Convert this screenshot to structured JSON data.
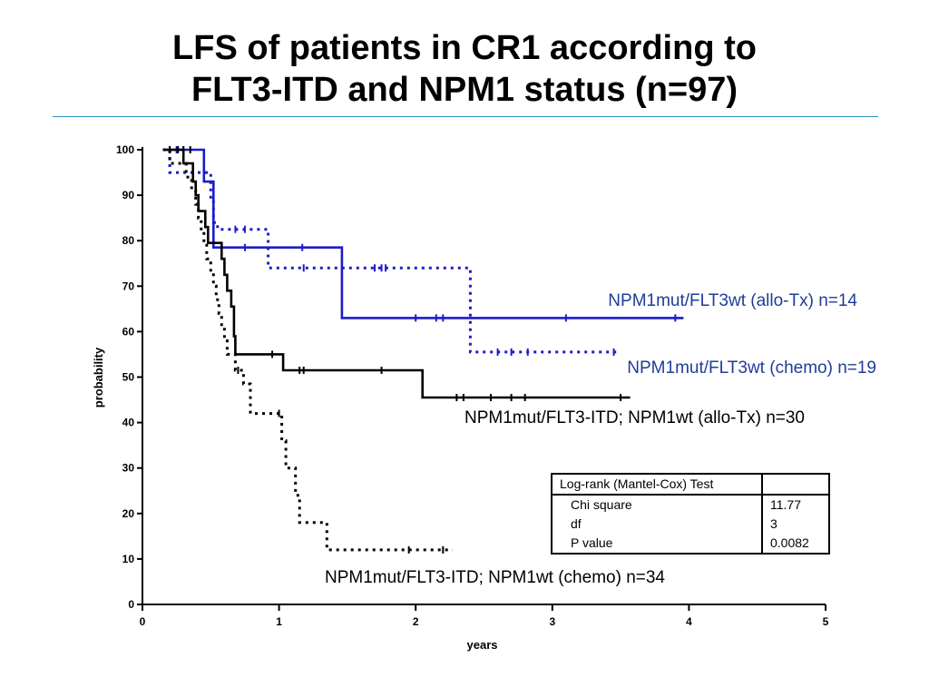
{
  "title": {
    "line1": "LFS of patients in CR1 according to",
    "line2": "FLT3-ITD and NPM1 status (n=97)"
  },
  "colors": {
    "rule": "#2b8fc0",
    "blue": "#1c1cc8",
    "black": "#000000",
    "label_blue": "#1f3d99"
  },
  "chart_data": {
    "type": "line",
    "subtype": "kaplan-meier step",
    "xlabel": "years",
    "ylabel": "probability",
    "xlim": [
      0,
      5
    ],
    "ylim": [
      0,
      100
    ],
    "x_ticks": [
      "0",
      "1",
      "2",
      "3",
      "4",
      "5"
    ],
    "y_ticks": [
      "0",
      "10",
      "20",
      "30",
      "40",
      "50",
      "60",
      "70",
      "80",
      "90",
      "100"
    ],
    "grid": false,
    "series": [
      {
        "name": "NPM1mut/FLT3wt (allo-Tx) n=14",
        "color": "#1c1cc8",
        "style": "solid",
        "points": [
          [
            0.15,
            100
          ],
          [
            0.45,
            100
          ],
          [
            0.45,
            93
          ],
          [
            0.52,
            93
          ],
          [
            0.52,
            78.5
          ],
          [
            1.46,
            78.5
          ],
          [
            1.46,
            63
          ],
          [
            3.96,
            63
          ]
        ],
        "censors": [
          [
            0.75,
            78.5
          ],
          [
            1.17,
            78.5
          ],
          [
            2.0,
            63
          ],
          [
            2.15,
            63
          ],
          [
            2.2,
            63
          ],
          [
            3.1,
            63
          ],
          [
            3.9,
            63
          ]
        ]
      },
      {
        "name": "NPM1mut/FLT3wt (chemo) n=19",
        "color": "#1c1cc8",
        "style": "dotted",
        "points": [
          [
            0.2,
            100
          ],
          [
            0.2,
            95
          ],
          [
            0.5,
            95
          ],
          [
            0.5,
            89
          ],
          [
            0.52,
            89
          ],
          [
            0.52,
            84
          ],
          [
            0.55,
            84
          ],
          [
            0.55,
            82.5
          ],
          [
            0.92,
            82.5
          ],
          [
            0.92,
            74
          ],
          [
            2.4,
            74
          ],
          [
            2.4,
            55.5
          ],
          [
            3.47,
            55.5
          ]
        ],
        "censors": [
          [
            0.2,
            100
          ],
          [
            0.25,
            100
          ],
          [
            0.3,
            100
          ],
          [
            0.68,
            82.5
          ],
          [
            0.75,
            82.5
          ],
          [
            1.18,
            74
          ],
          [
            1.7,
            74
          ],
          [
            1.75,
            74
          ],
          [
            1.78,
            74
          ],
          [
            2.6,
            55.5
          ],
          [
            2.7,
            55.5
          ],
          [
            2.82,
            55.5
          ],
          [
            3.45,
            55.5
          ]
        ]
      },
      {
        "name": "NPM1mut/FLT3-ITD; NPM1wt (allo-Tx) n=30",
        "color": "#000000",
        "style": "solid",
        "points": [
          [
            0.15,
            100
          ],
          [
            0.3,
            100
          ],
          [
            0.3,
            97
          ],
          [
            0.37,
            97
          ],
          [
            0.37,
            93
          ],
          [
            0.39,
            93
          ],
          [
            0.39,
            90
          ],
          [
            0.41,
            90
          ],
          [
            0.41,
            86.5
          ],
          [
            0.46,
            86.5
          ],
          [
            0.46,
            83
          ],
          [
            0.48,
            83
          ],
          [
            0.48,
            79.5
          ],
          [
            0.58,
            79.5
          ],
          [
            0.58,
            76
          ],
          [
            0.6,
            76
          ],
          [
            0.6,
            72.5
          ],
          [
            0.62,
            72.5
          ],
          [
            0.62,
            69
          ],
          [
            0.65,
            69
          ],
          [
            0.65,
            65.5
          ],
          [
            0.67,
            65.5
          ],
          [
            0.67,
            59
          ],
          [
            0.68,
            59
          ],
          [
            0.68,
            55
          ],
          [
            1.03,
            55
          ],
          [
            1.03,
            51.5
          ],
          [
            2.05,
            51.5
          ],
          [
            2.05,
            45.5
          ],
          [
            3.57,
            45.5
          ]
        ],
        "censors": [
          [
            0.2,
            100
          ],
          [
            0.26,
            100
          ],
          [
            0.95,
            55
          ],
          [
            1.15,
            51.5
          ],
          [
            1.18,
            51.5
          ],
          [
            1.75,
            51.5
          ],
          [
            2.3,
            45.5
          ],
          [
            2.35,
            45.5
          ],
          [
            2.55,
            45.5
          ],
          [
            2.7,
            45.5
          ],
          [
            2.8,
            45.5
          ],
          [
            3.5,
            45.5
          ]
        ]
      },
      {
        "name": "NPM1mut/FLT3-ITD; NPM1wt (chemo) n=34",
        "color": "#000000",
        "style": "dotted",
        "points": [
          [
            0.15,
            100
          ],
          [
            0.2,
            100
          ],
          [
            0.2,
            97
          ],
          [
            0.32,
            97
          ],
          [
            0.32,
            94
          ],
          [
            0.36,
            94
          ],
          [
            0.36,
            91
          ],
          [
            0.39,
            91
          ],
          [
            0.39,
            88
          ],
          [
            0.41,
            88
          ],
          [
            0.41,
            85
          ],
          [
            0.43,
            85
          ],
          [
            0.43,
            82
          ],
          [
            0.45,
            82
          ],
          [
            0.45,
            79
          ],
          [
            0.47,
            79
          ],
          [
            0.47,
            76
          ],
          [
            0.5,
            76
          ],
          [
            0.5,
            73
          ],
          [
            0.52,
            73
          ],
          [
            0.52,
            70
          ],
          [
            0.54,
            70
          ],
          [
            0.54,
            67
          ],
          [
            0.56,
            67
          ],
          [
            0.56,
            64
          ],
          [
            0.58,
            64
          ],
          [
            0.58,
            61
          ],
          [
            0.6,
            61
          ],
          [
            0.6,
            58
          ],
          [
            0.62,
            58
          ],
          [
            0.62,
            55
          ],
          [
            0.68,
            55
          ],
          [
            0.68,
            51.5
          ],
          [
            0.74,
            51.5
          ],
          [
            0.74,
            48.5
          ],
          [
            0.79,
            48.5
          ],
          [
            0.79,
            42
          ],
          [
            1.02,
            42
          ],
          [
            1.02,
            36
          ],
          [
            1.05,
            36
          ],
          [
            1.05,
            30
          ],
          [
            1.12,
            30
          ],
          [
            1.12,
            24
          ],
          [
            1.15,
            24
          ],
          [
            1.15,
            18
          ],
          [
            1.35,
            18
          ],
          [
            1.35,
            12
          ],
          [
            2.27,
            12
          ]
        ],
        "censors": [
          [
            0.3,
            100
          ],
          [
            0.35,
            100
          ],
          [
            0.7,
            51.5
          ],
          [
            1.0,
            42
          ],
          [
            1.95,
            12
          ],
          [
            2.2,
            12
          ]
        ]
      }
    ],
    "annotations": [
      {
        "text": "NPM1mut/FLT3wt (allo-Tx) n=14",
        "color": "#1f3d99"
      },
      {
        "text": "NPM1mut/FLT3wt (chemo) n=19",
        "color": "#1f3d99"
      },
      {
        "text": "NPM1mut/FLT3-ITD; NPM1wt (allo-Tx) n=30",
        "color": "#000000"
      },
      {
        "text": "NPM1mut/FLT3-ITD; NPM1wt (chemo) n=34",
        "color": "#000000"
      }
    ]
  },
  "stats_table": {
    "header": "Log-rank (Mantel-Cox) Test",
    "rows": [
      {
        "label": "Chi square",
        "value": "11.77"
      },
      {
        "label": "df",
        "value": "3"
      },
      {
        "label": "P value",
        "value": "0.0082"
      }
    ]
  }
}
